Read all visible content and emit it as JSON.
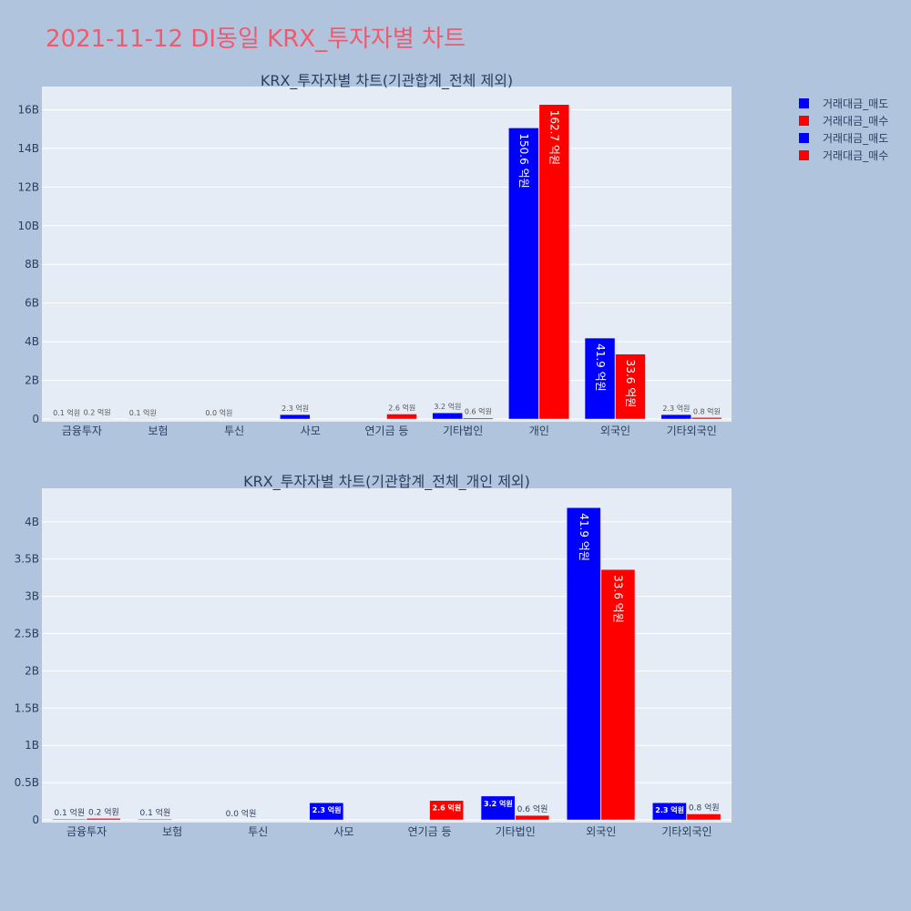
{
  "title": "2021-11-12 DI동일 KRX_투자자별 차트",
  "legend": [
    {
      "name": "거래대금_매도",
      "color": "#0000ff"
    },
    {
      "name": "거래대금_매수",
      "color": "#ff0000"
    },
    {
      "name": "거래대금_매도",
      "color": "#0000ff"
    },
    {
      "name": "거래대금_매수",
      "color": "#ff0000"
    }
  ],
  "chart_data": [
    {
      "type": "bar",
      "title": "KRX_투자자별 차트(기관합계_전체 제외)",
      "categories": [
        "금융투자",
        "보험",
        "투신",
        "사모",
        "연기금 등",
        "기타법인",
        "개인",
        "외국인",
        "기타외국인"
      ],
      "ylim": [
        0,
        17200000000.0
      ],
      "yticks": [
        0,
        2000000000.0,
        4000000000.0,
        6000000000.0,
        8000000000.0,
        10000000000.0,
        12000000000.0,
        14000000000.0,
        16000000000.0
      ],
      "ytick_labels": [
        "0",
        "2B",
        "4B",
        "6B",
        "8B",
        "10B",
        "12B",
        "14B",
        "16B"
      ],
      "grid": true,
      "series": [
        {
          "name": "거래대금_매도",
          "color": "#0000ff",
          "values": [
            10000000.0,
            10000000.0,
            0.0,
            230000000.0,
            0.0,
            320000000.0,
            15060000000.0,
            4190000000.0,
            230000000.0
          ],
          "labels": [
            "0.1 억원",
            "0.1 억원",
            "0.0 억원",
            "2.3 억원",
            "",
            "3.2 억원",
            "150.6 억원",
            "41.9 억원",
            "2.3 억원"
          ]
        },
        {
          "name": "거래대금_매수",
          "color": "#ff0000",
          "values": [
            20000000.0,
            0.0,
            0.0,
            0.0,
            260000000.0,
            60000000.0,
            16270000000.0,
            3360000000.0,
            80000000.0
          ],
          "labels": [
            "0.2 억원",
            "",
            "",
            "",
            "2.6 억원",
            "0.6 억원",
            "162.7 억원",
            "33.6 억원",
            "0.8 억원"
          ]
        }
      ]
    },
    {
      "type": "bar",
      "title": "KRX_투자자별 차트(기관합계_전체_개인 제외)",
      "categories": [
        "금융투자",
        "보험",
        "투신",
        "사모",
        "연기금 등",
        "기타법인",
        "외국인",
        "기타외국인"
      ],
      "ylim": [
        0,
        4450000000.0
      ],
      "yticks": [
        0,
        500000000.0,
        1000000000.0,
        1500000000.0,
        2000000000.0,
        2500000000.0,
        3000000000.0,
        3500000000.0,
        4000000000.0
      ],
      "ytick_labels": [
        "0",
        "0.5B",
        "1B",
        "1.5B",
        "2B",
        "2.5B",
        "3B",
        "3.5B",
        "4B"
      ],
      "grid": true,
      "series": [
        {
          "name": "거래대금_매도",
          "color": "#0000ff",
          "values": [
            10000000.0,
            10000000.0,
            0.0,
            230000000.0,
            0.0,
            320000000.0,
            4190000000.0,
            230000000.0
          ],
          "labels": [
            "0.1 억원",
            "0.1 억원",
            "0.0 억원",
            "2.3 억원",
            "",
            "3.2 억원",
            "41.9 억원",
            "2.3 억원"
          ]
        },
        {
          "name": "거래대금_매수",
          "color": "#ff0000",
          "values": [
            20000000.0,
            0.0,
            0.0,
            0.0,
            260000000.0,
            60000000.0,
            3360000000.0,
            80000000.0
          ],
          "labels": [
            "0.2 억원",
            "",
            "",
            "",
            "2.6 억원",
            "0.6 억원",
            "33.6 억원",
            "0.8 억원"
          ]
        }
      ]
    }
  ]
}
